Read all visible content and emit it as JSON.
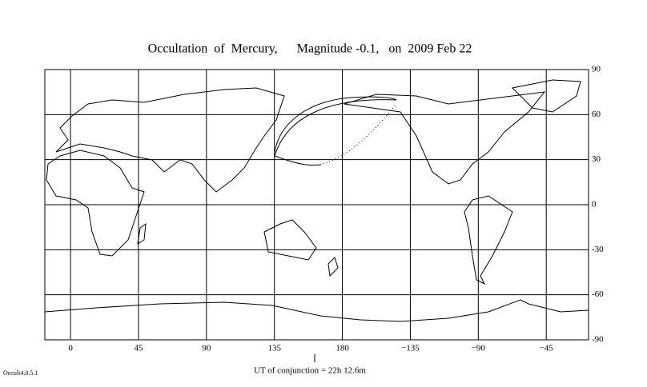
{
  "chart_data": {
    "type": "map",
    "title": "Occultation  of  Mercury,      Magnitude -0.1,   on  2009 Feb 22",
    "annotation": "UT of conjunction = 22h 12.6m",
    "xlim": [
      -17,
      343
    ],
    "xticks": [
      0,
      45,
      90,
      135,
      180,
      {
        "value": 225,
        "label": "−135"
      },
      {
        "value": 270,
        "label": "−90"
      },
      {
        "value": 315,
        "label": "−45"
      }
    ],
    "ylim": [
      -90,
      90
    ],
    "yticks": [
      90,
      60,
      30,
      0,
      -30,
      -60,
      -90
    ],
    "grid": true
  },
  "program_version": "Occult4.0.5.1"
}
